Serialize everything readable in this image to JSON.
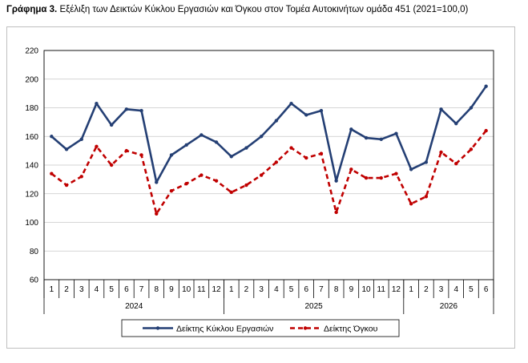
{
  "title": {
    "bold": "Γράφημα 3.",
    "text": "Εξέλιξη των Δεικτών Κύκλου Εργασιών και Όγκου στον Τομέα Αυτοκινήτων ομάδα 451 (2021=100,0)"
  },
  "chart_data": {
    "type": "line",
    "title": "Εξέλιξη των Δεικτών Κύκλου Εργασιών και Όγκου στον Τομέα Αυτοκινήτων ομάδα 451 (2021=100,0)",
    "xlabel": "",
    "ylabel": "",
    "ylim": [
      60,
      220
    ],
    "yticks": [
      60,
      80,
      100,
      120,
      140,
      160,
      180,
      200,
      220
    ],
    "grid": "horizontal",
    "legend_position": "bottom",
    "months": [
      "1",
      "2",
      "3",
      "4",
      "5",
      "6",
      "7",
      "8",
      "9",
      "10",
      "11",
      "12",
      "1",
      "2",
      "3",
      "4",
      "5",
      "6",
      "7",
      "8",
      "9",
      "10",
      "11",
      "12",
      "1",
      "2",
      "3",
      "4",
      "5",
      "6"
    ],
    "years": [
      {
        "label": "2024",
        "months": 12
      },
      {
        "label": "2025",
        "months": 12
      },
      {
        "label": "2026",
        "months": 6
      }
    ],
    "series": [
      {
        "name": "Δείκτης Κύκλου Εργασιών",
        "color": "#243f74",
        "style": "solid",
        "values": [
          160,
          151,
          158,
          183,
          168,
          179,
          178,
          128,
          147,
          154,
          161,
          156,
          146,
          152,
          160,
          171,
          183,
          175,
          178,
          129,
          165,
          159,
          158,
          162,
          137,
          142,
          179,
          169,
          180,
          195
        ]
      },
      {
        "name": "Δείκτης Όγκου",
        "color": "#c00000",
        "style": "dashed",
        "values": [
          134,
          126,
          132,
          153,
          140,
          150,
          147,
          106,
          122,
          127,
          133,
          129,
          121,
          126,
          133,
          142,
          152,
          145,
          148,
          107,
          137,
          131,
          131,
          134,
          113,
          118,
          149,
          141,
          151,
          164
        ]
      }
    ]
  }
}
